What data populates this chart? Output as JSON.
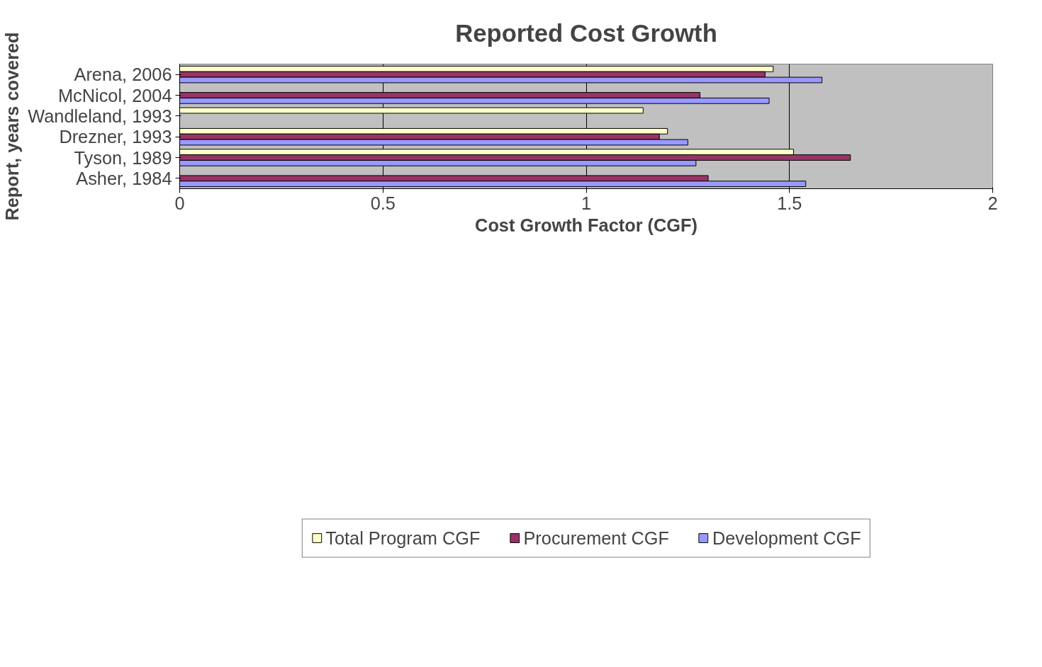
{
  "chart_data": {
    "type": "bar",
    "orientation": "horizontal",
    "title": "Reported Cost Growth",
    "xlabel": "Cost Growth Factor (CGF)",
    "ylabel": "Report, years covered",
    "categories": [
      "Arena, 2006",
      "McNicol, 2004",
      "Wandleland, 1993",
      "Drezner, 1993",
      "Tyson, 1989",
      "Asher, 1984"
    ],
    "series": [
      {
        "name": "Total Program CGF",
        "color": "#ffffcc",
        "values": [
          1.46,
          null,
          1.14,
          1.2,
          1.51,
          null
        ]
      },
      {
        "name": "Procurement CGF",
        "color": "#993366",
        "values": [
          1.44,
          1.28,
          null,
          1.18,
          1.65,
          1.3
        ]
      },
      {
        "name": "Development CGF",
        "color": "#9999ff",
        "values": [
          1.58,
          1.45,
          null,
          1.25,
          1.27,
          1.54
        ]
      }
    ],
    "xlim": [
      0,
      2
    ],
    "xticks": [
      0,
      0.5,
      1,
      1.5,
      2
    ],
    "grid": "x",
    "legend": "bottom"
  }
}
